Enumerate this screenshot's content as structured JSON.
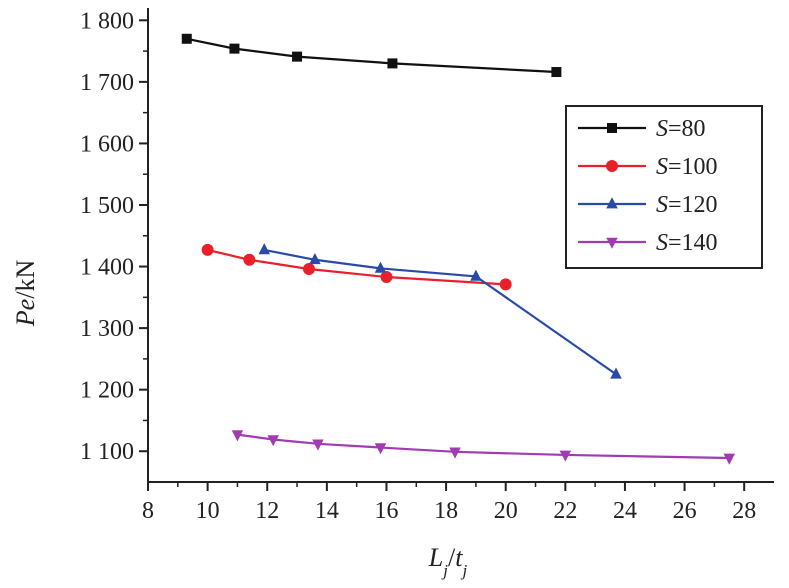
{
  "chart_data": {
    "type": "line",
    "ylabel": "Pe/kN",
    "xlabel": "Lj/tj",
    "xlim": [
      8,
      29
    ],
    "ylim": [
      1050,
      1820
    ],
    "xticks": [
      8,
      10,
      12,
      14,
      16,
      18,
      20,
      22,
      24,
      26,
      28
    ],
    "xtick_labels": [
      "8",
      "10",
      "12",
      "14",
      "16",
      "18",
      "20",
      "22",
      "24",
      "26",
      "28"
    ],
    "yticks": [
      1100,
      1200,
      1300,
      1400,
      1500,
      1600,
      1700,
      1800
    ],
    "ytick_labels": [
      "1 100",
      "1 200",
      "1 300",
      "1 400",
      "1 500",
      "1 600",
      "1 700",
      "1 800"
    ],
    "grid": false,
    "legend_position": "top-right",
    "series": [
      {
        "name": "S=80",
        "color": "#111111",
        "marker": "square",
        "x": [
          9.3,
          10.9,
          13.0,
          16.2,
          21.7
        ],
        "y": [
          1770,
          1754,
          1741,
          1730,
          1716
        ]
      },
      {
        "name": "S=100",
        "color": "#e8202a",
        "marker": "circle",
        "x": [
          10.0,
          11.4,
          13.4,
          16.0,
          20.0
        ],
        "y": [
          1427,
          1411,
          1396,
          1383,
          1371
        ]
      },
      {
        "name": "S=120",
        "color": "#2a4aa8",
        "marker": "triangle-up",
        "x": [
          11.9,
          13.6,
          15.8,
          19.0,
          23.7
        ],
        "y": [
          1427,
          1411,
          1397,
          1384,
          1225
        ]
      },
      {
        "name": "S=140",
        "color": "#a23ab4",
        "marker": "triangle-down",
        "x": [
          11.0,
          12.2,
          13.7,
          15.8,
          18.3,
          22.0,
          27.5
        ],
        "y": [
          1127,
          1119,
          1112,
          1106,
          1099,
          1094,
          1089
        ]
      }
    ]
  }
}
